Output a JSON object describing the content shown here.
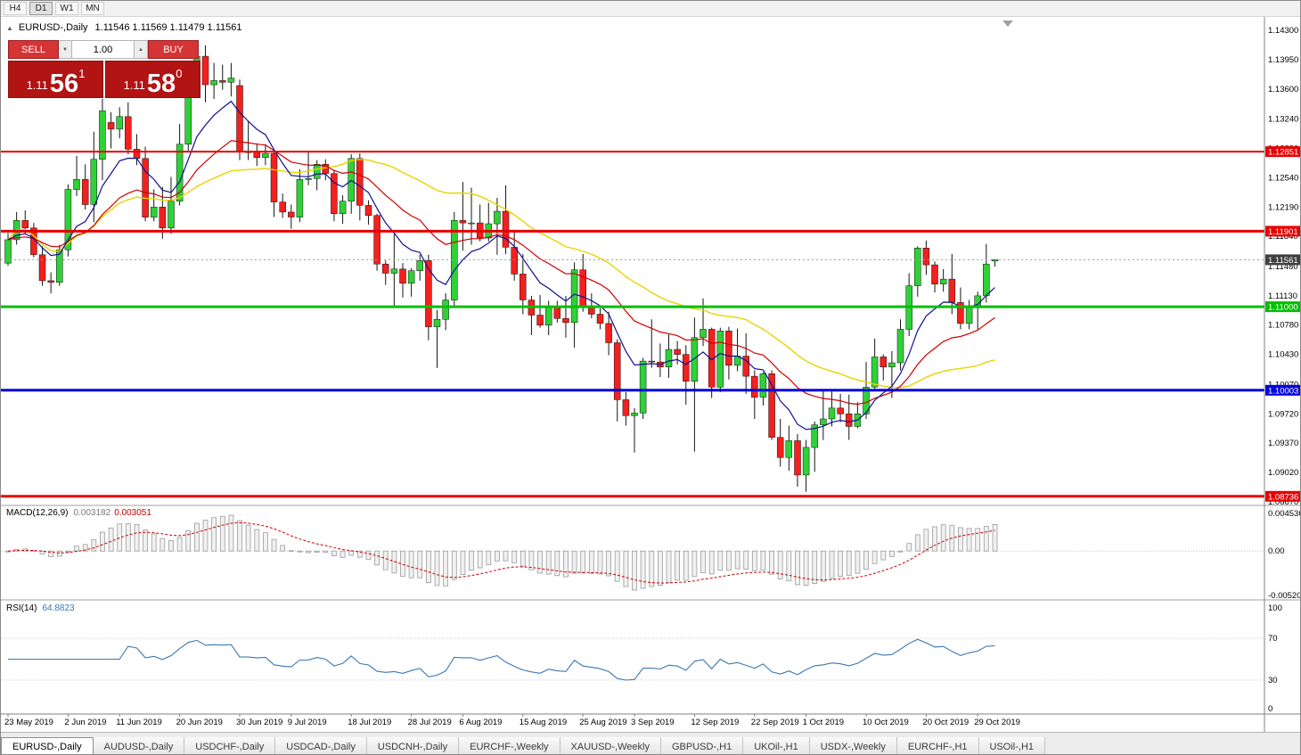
{
  "toolbar": {
    "timeframes": [
      "H4",
      "D1",
      "W1",
      "MN"
    ],
    "active": "D1"
  },
  "chart_header": {
    "symbol_title": "EURUSD-,Daily",
    "ohlc": "1.11546 1.11569 1.11479 1.11561"
  },
  "icons": {
    "collapse": "▲",
    "spin_down": "▼",
    "spin_up": "▲"
  },
  "trade_panel": {
    "sell_label": "SELL",
    "buy_label": "BUY",
    "volume": "1.00",
    "sell_price": {
      "prefix": "1.11",
      "big": "56",
      "sup": "1"
    },
    "buy_price": {
      "prefix": "1.11",
      "big": "58",
      "sup": "0"
    }
  },
  "chart_data": {
    "type": "candlestick",
    "symbol": "EURUSD",
    "timeframe": "Daily",
    "ylim": [
      1.0867,
      1.143
    ],
    "price_axis_ticks": [
      "1.14300",
      "1.13950",
      "1.13600",
      "1.13240",
      "1.12890",
      "1.12540",
      "1.12190",
      "1.11840",
      "1.11480",
      "1.11130",
      "1.10780",
      "1.10430",
      "1.10070",
      "1.09720",
      "1.09370",
      "1.09020",
      "1.08670"
    ],
    "hlines": [
      {
        "price": 1.12851,
        "label": "1.12851",
        "color": "#e80000",
        "width": 2
      },
      {
        "price": 1.11901,
        "label": "1.11901",
        "color": "#e80000",
        "width": 3
      },
      {
        "price": 1.11,
        "label": "1.11000",
        "color": "#00c000",
        "width": 3
      },
      {
        "price": 1.10003,
        "label": "1.10003",
        "color": "#0000e0",
        "width": 3
      },
      {
        "price": 1.08736,
        "label": "1.08736",
        "color": "#e80000",
        "width": 3
      }
    ],
    "current_price": {
      "price": 1.11561,
      "label": "1.11561",
      "color": "#404040"
    },
    "colors": {
      "up": "#2fd137",
      "down": "#f3201d",
      "wick": "#151515",
      "ma_fast": "#101090",
      "ma_mid": "#d00000",
      "ma_slow": "#e8d400"
    },
    "date_labels": [
      {
        "label": "23 May 2019",
        "i": 0
      },
      {
        "label": "2 Jun 2019",
        "i": 7
      },
      {
        "label": "11 Jun 2019",
        "i": 13
      },
      {
        "label": "20 Jun 2019",
        "i": 20
      },
      {
        "label": "30 Jun 2019",
        "i": 27
      },
      {
        "label": "9 Jul 2019",
        "i": 33
      },
      {
        "label": "18 Jul 2019",
        "i": 40
      },
      {
        "label": "28 Jul 2019",
        "i": 47
      },
      {
        "label": "6 Aug 2019",
        "i": 53
      },
      {
        "label": "15 Aug 2019",
        "i": 60
      },
      {
        "label": "25 Aug 2019",
        "i": 67
      },
      {
        "label": "3 Sep 2019",
        "i": 73
      },
      {
        "label": "12 Sep 2019",
        "i": 80
      },
      {
        "label": "22 Sep 2019",
        "i": 87
      },
      {
        "label": "1 Oct 2019",
        "i": 93
      },
      {
        "label": "10 Oct 2019",
        "i": 100
      },
      {
        "label": "20 Oct 2019",
        "i": 107
      },
      {
        "label": "29 Oct 2019",
        "i": 113
      }
    ],
    "candles_ohlc": [
      [
        1.1152,
        1.1188,
        1.1149,
        1.118
      ],
      [
        1.118,
        1.1213,
        1.1174,
        1.1203
      ],
      [
        1.1203,
        1.1215,
        1.1187,
        1.1194
      ],
      [
        1.1194,
        1.12,
        1.1159,
        1.1162
      ],
      [
        1.1162,
        1.1172,
        1.1125,
        1.1131
      ],
      [
        1.1131,
        1.1141,
        1.1116,
        1.1129
      ],
      [
        1.1129,
        1.1174,
        1.1125,
        1.1168
      ],
      [
        1.1168,
        1.1246,
        1.116,
        1.124
      ],
      [
        1.124,
        1.128,
        1.1232,
        1.1252
      ],
      [
        1.1252,
        1.127,
        1.1216,
        1.1222
      ],
      [
        1.1222,
        1.1309,
        1.1201,
        1.1276
      ],
      [
        1.1276,
        1.1348,
        1.1251,
        1.1334
      ],
      [
        1.132,
        1.1332,
        1.1289,
        1.1312
      ],
      [
        1.1312,
        1.1338,
        1.1301,
        1.1327
      ],
      [
        1.1327,
        1.1344,
        1.1282,
        1.1288
      ],
      [
        1.1288,
        1.1306,
        1.1269,
        1.1277
      ],
      [
        1.1277,
        1.1291,
        1.1202,
        1.1207
      ],
      [
        1.1207,
        1.124,
        1.1202,
        1.1219
      ],
      [
        1.1219,
        1.1243,
        1.1181,
        1.1194
      ],
      [
        1.1194,
        1.1255,
        1.1187,
        1.1226
      ],
      [
        1.1226,
        1.1318,
        1.1221,
        1.1294
      ],
      [
        1.1294,
        1.1378,
        1.1286,
        1.1368
      ],
      [
        1.1368,
        1.1404,
        1.1358,
        1.1399
      ],
      [
        1.1399,
        1.1412,
        1.1344,
        1.1365
      ],
      [
        1.1365,
        1.1391,
        1.1348,
        1.137
      ],
      [
        1.137,
        1.1389,
        1.1359,
        1.1368
      ],
      [
        1.1368,
        1.1391,
        1.1351,
        1.1373
      ],
      [
        1.1364,
        1.1371,
        1.1275,
        1.1285
      ],
      [
        1.1285,
        1.1322,
        1.1275,
        1.1285
      ],
      [
        1.1285,
        1.1295,
        1.1268,
        1.1278
      ],
      [
        1.1278,
        1.1294,
        1.1269,
        1.1283
      ],
      [
        1.1283,
        1.1287,
        1.1207,
        1.1225
      ],
      [
        1.1225,
        1.1235,
        1.1206,
        1.1213
      ],
      [
        1.1213,
        1.1222,
        1.1193,
        1.1207
      ],
      [
        1.1207,
        1.1264,
        1.1201,
        1.1252
      ],
      [
        1.1252,
        1.1285,
        1.1245,
        1.1253
      ],
      [
        1.1253,
        1.1275,
        1.1239,
        1.127
      ],
      [
        1.127,
        1.1276,
        1.1251,
        1.1259
      ],
      [
        1.1259,
        1.1263,
        1.1202,
        1.1211
      ],
      [
        1.1211,
        1.1233,
        1.1199,
        1.1226
      ],
      [
        1.1226,
        1.1282,
        1.1211,
        1.1277
      ],
      [
        1.1277,
        1.1283,
        1.1203,
        1.1221
      ],
      [
        1.1221,
        1.1227,
        1.1198,
        1.1209
      ],
      [
        1.1209,
        1.1211,
        1.1143,
        1.1151
      ],
      [
        1.1151,
        1.1155,
        1.1126,
        1.114
      ],
      [
        1.114,
        1.1187,
        1.1101,
        1.1145
      ],
      [
        1.1145,
        1.1152,
        1.1111,
        1.1128
      ],
      [
        1.1128,
        1.1146,
        1.1112,
        1.1143
      ],
      [
        1.1143,
        1.1162,
        1.1131,
        1.1155
      ],
      [
        1.1155,
        1.1162,
        1.106,
        1.1076
      ],
      [
        1.1076,
        1.1096,
        1.1027,
        1.1085
      ],
      [
        1.1085,
        1.1116,
        1.1072,
        1.1108
      ],
      [
        1.1108,
        1.1213,
        1.1101,
        1.1203
      ],
      [
        1.1203,
        1.1249,
        1.1167,
        1.12
      ],
      [
        1.12,
        1.1242,
        1.1174,
        1.12
      ],
      [
        1.12,
        1.1222,
        1.1178,
        1.1182
      ],
      [
        1.1182,
        1.1224,
        1.1178,
        1.1199
      ],
      [
        1.1199,
        1.123,
        1.1162,
        1.1214
      ],
      [
        1.1214,
        1.1245,
        1.1163,
        1.1171
      ],
      [
        1.1171,
        1.1192,
        1.1131,
        1.1139
      ],
      [
        1.1139,
        1.1163,
        1.1091,
        1.1108
      ],
      [
        1.1108,
        1.1113,
        1.1066,
        1.109
      ],
      [
        1.109,
        1.1114,
        1.1075,
        1.1078
      ],
      [
        1.1078,
        1.1107,
        1.1066,
        1.11
      ],
      [
        1.11,
        1.1107,
        1.1081,
        1.1086
      ],
      [
        1.1086,
        1.1113,
        1.1063,
        1.1081
      ],
      [
        1.1081,
        1.1153,
        1.1051,
        1.1144
      ],
      [
        1.1144,
        1.1163,
        1.1094,
        1.1101
      ],
      [
        1.1101,
        1.1116,
        1.1086,
        1.1091
      ],
      [
        1.1091,
        1.1098,
        1.1073,
        1.108
      ],
      [
        1.108,
        1.1094,
        1.1042,
        1.1057
      ],
      [
        1.1057,
        1.1061,
        1.0963,
        1.0989
      ],
      [
        1.0989,
        1.0998,
        1.0958,
        1.097
      ],
      [
        1.097,
        1.0979,
        1.0926,
        1.0973
      ],
      [
        1.0973,
        1.1039,
        1.0966,
        1.1035
      ],
      [
        1.1035,
        1.1085,
        1.1027,
        1.1034
      ],
      [
        1.1034,
        1.1056,
        1.1016,
        1.1028
      ],
      [
        1.1028,
        1.1067,
        1.1015,
        1.1049
      ],
      [
        1.1049,
        1.1059,
        1.1031,
        1.1043
      ],
      [
        1.1043,
        1.1054,
        1.0983,
        1.1011
      ],
      [
        1.1011,
        1.1087,
        1.0927,
        1.1063
      ],
      [
        1.1063,
        1.111,
        1.1053,
        1.1073
      ],
      [
        1.1073,
        1.1075,
        1.0991,
        1.1004
      ],
      [
        1.1004,
        1.1075,
        1.0998,
        1.1071
      ],
      [
        1.1071,
        1.1076,
        1.1013,
        1.103
      ],
      [
        1.103,
        1.1074,
        1.1023,
        1.1041
      ],
      [
        1.1041,
        1.1068,
        1.0996,
        1.1017
      ],
      [
        1.1017,
        1.1024,
        1.0966,
        1.0992
      ],
      [
        1.0992,
        1.1022,
        1.0982,
        1.102
      ],
      [
        1.102,
        1.1024,
        1.0941,
        1.0944
      ],
      [
        1.0944,
        1.0966,
        1.0909,
        1.092
      ],
      [
        1.092,
        1.0958,
        1.0904,
        1.094
      ],
      [
        1.094,
        1.0948,
        1.0885,
        1.0899
      ],
      [
        1.0899,
        1.0941,
        1.0879,
        1.0932
      ],
      [
        1.0932,
        1.0963,
        1.0903,
        1.0959
      ],
      [
        1.0959,
        1.0999,
        1.0941,
        1.0966
      ],
      [
        1.0966,
        1.0999,
        1.0957,
        1.0979
      ],
      [
        1.0979,
        1.0996,
        1.0962,
        1.0972
      ],
      [
        1.0972,
        1.0995,
        1.0941,
        1.0957
      ],
      [
        1.0957,
        1.0986,
        1.0955,
        1.0972
      ],
      [
        1.0972,
        1.1034,
        1.0966,
        1.1004
      ],
      [
        1.1004,
        1.1062,
        1.1002,
        1.104
      ],
      [
        1.104,
        1.1043,
        1.1012,
        1.1028
      ],
      [
        1.1028,
        1.1047,
        1.0991,
        1.1033
      ],
      [
        1.1033,
        1.1085,
        1.1024,
        1.1073
      ],
      [
        1.1073,
        1.114,
        1.1065,
        1.1125
      ],
      [
        1.1125,
        1.1172,
        1.1112,
        1.117
      ],
      [
        1.117,
        1.1179,
        1.1138,
        1.115
      ],
      [
        1.115,
        1.1154,
        1.1117,
        1.1127
      ],
      [
        1.1127,
        1.1145,
        1.1118,
        1.1133
      ],
      [
        1.1133,
        1.1163,
        1.1091,
        1.1105
      ],
      [
        1.1105,
        1.1123,
        1.1073,
        1.108
      ],
      [
        1.108,
        1.1108,
        1.1073,
        1.11
      ],
      [
        1.11,
        1.1118,
        1.1073,
        1.1113
      ],
      [
        1.1113,
        1.1175,
        1.1105,
        1.1151
      ],
      [
        1.11546,
        1.11569,
        1.11479,
        1.11561
      ]
    ]
  },
  "macd": {
    "name": "MACD(12,26,9)",
    "value_main": "0.003182",
    "value_signal": "0.003051",
    "axis_labels": [
      "0.004536",
      "0.00",
      "-0.005205"
    ]
  },
  "rsi": {
    "name": "RSI(14)",
    "value": "64.8823",
    "axis_labels": [
      "100",
      "70",
      "30",
      "0"
    ]
  },
  "tabs": [
    "EURUSD-,Daily",
    "AUDUSD-,Daily",
    "USDCHF-,Daily",
    "USDCAD-,Daily",
    "USDCNH-,Daily",
    "EURCHF-,Weekly",
    "XAUUSD-,Weekly",
    "GBPUSD-,H1",
    "UKOil-,H1",
    "USDX-,Weekly",
    "EURCHF-,H1",
    "USOil-,H1"
  ],
  "active_tab": "EURUSD-,Daily"
}
